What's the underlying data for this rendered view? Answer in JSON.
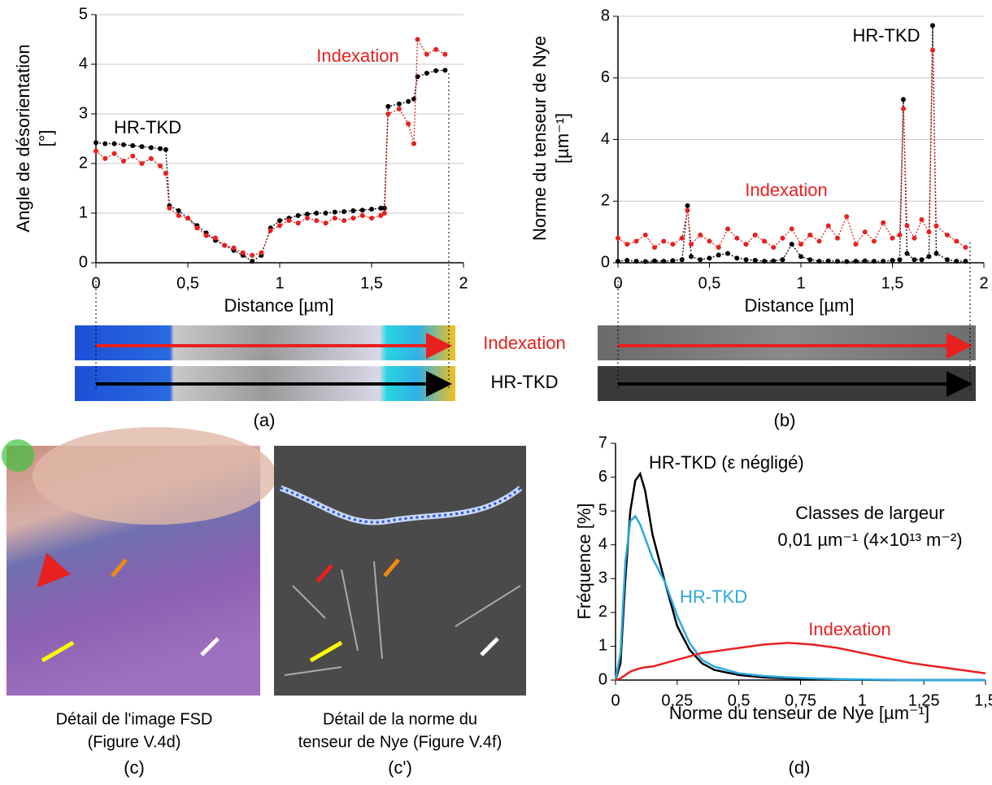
{
  "chart_data": [
    {
      "type": "line",
      "caption": "(a)",
      "ylabel": [
        "Angle de désorientation",
        "[°]"
      ],
      "xlabel": "Distance [µm]",
      "xlim": [
        0,
        2
      ],
      "xticks": [
        0,
        {
          "value": 0.5,
          "label": "0,5"
        },
        1,
        {
          "value": 1.5,
          "label": "1,5"
        },
        2
      ],
      "ylim": [
        0,
        5
      ],
      "yticks": [
        0,
        1,
        2,
        3,
        4,
        5
      ],
      "grid": true,
      "markers": true,
      "x": [
        0,
        0.05,
        0.1,
        0.15,
        0.2,
        0.25,
        0.3,
        0.35,
        0.38,
        0.4,
        0.45,
        0.5,
        0.55,
        0.6,
        0.65,
        0.7,
        0.75,
        0.8,
        0.85,
        0.9,
        0.95,
        1.0,
        1.05,
        1.1,
        1.15,
        1.2,
        1.25,
        1.3,
        1.35,
        1.4,
        1.45,
        1.5,
        1.55,
        1.57,
        1.59,
        1.65,
        1.7,
        1.73,
        1.75,
        1.8,
        1.85,
        1.9
      ],
      "series": [
        {
          "name": "HR-TKD",
          "color": "#000000",
          "values": [
            2.42,
            2.4,
            2.4,
            2.38,
            2.36,
            2.34,
            2.32,
            2.3,
            2.28,
            1.15,
            1.05,
            0.9,
            0.75,
            0.6,
            0.45,
            0.35,
            0.25,
            0.15,
            0.03,
            0.15,
            0.7,
            0.85,
            0.9,
            0.95,
            0.98,
            1.0,
            1.0,
            1.02,
            1.03,
            1.05,
            1.06,
            1.08,
            1.1,
            1.1,
            3.15,
            3.2,
            3.25,
            3.3,
            3.75,
            3.82,
            3.87,
            3.88
          ]
        },
        {
          "name": "Indexation",
          "color": "#e8201f",
          "values": [
            2.25,
            2.1,
            2.2,
            2.05,
            2.15,
            2.0,
            2.1,
            1.95,
            1.8,
            1.1,
            0.95,
            0.9,
            0.7,
            0.55,
            0.5,
            0.35,
            0.3,
            0.2,
            0.15,
            0.2,
            0.65,
            0.75,
            0.85,
            0.8,
            0.9,
            0.85,
            0.8,
            0.9,
            0.85,
            0.9,
            0.95,
            0.9,
            0.95,
            1.0,
            3.0,
            3.1,
            2.8,
            2.4,
            4.5,
            4.2,
            4.3,
            4.2
          ]
        }
      ]
    },
    {
      "type": "line",
      "caption": "(b)",
      "ylabel": [
        "Norme du tenseur de Nye",
        "[µm⁻¹]"
      ],
      "xlabel": "Distance [µm]",
      "xlim": [
        0,
        2
      ],
      "xticks": [
        0,
        {
          "value": 0.5,
          "label": "0,5"
        },
        1,
        {
          "value": 1.5,
          "label": "1,5"
        },
        2
      ],
      "ylim": [
        0,
        8
      ],
      "yticks": [
        0,
        2,
        4,
        6,
        8
      ],
      "grid": true,
      "markers": true,
      "x": [
        0,
        0.05,
        0.1,
        0.15,
        0.2,
        0.25,
        0.3,
        0.35,
        0.38,
        0.4,
        0.45,
        0.5,
        0.55,
        0.6,
        0.65,
        0.7,
        0.75,
        0.8,
        0.85,
        0.9,
        0.95,
        1.0,
        1.05,
        1.1,
        1.15,
        1.2,
        1.25,
        1.3,
        1.35,
        1.4,
        1.45,
        1.5,
        1.54,
        1.56,
        1.58,
        1.62,
        1.66,
        1.7,
        1.72,
        1.74,
        1.8,
        1.85,
        1.9
      ],
      "series": [
        {
          "name": "HR-TKD",
          "color": "#000000",
          "values": [
            0.05,
            0.08,
            0.05,
            0.04,
            0.06,
            0.05,
            0.07,
            0.1,
            1.85,
            0.2,
            0.1,
            0.15,
            0.25,
            0.3,
            0.15,
            0.1,
            0.08,
            0.05,
            0.06,
            0.1,
            0.6,
            0.2,
            0.1,
            0.05,
            0.06,
            0.05,
            0.04,
            0.05,
            0.06,
            0.05,
            0.05,
            0.08,
            0.1,
            5.3,
            0.3,
            0.1,
            0.1,
            0.2,
            7.7,
            0.3,
            0.1,
            0.05,
            0.05
          ]
        },
        {
          "name": "Indexation",
          "color": "#e8201f",
          "values": [
            0.8,
            0.6,
            0.7,
            0.9,
            0.5,
            0.7,
            0.6,
            0.8,
            1.7,
            0.6,
            0.9,
            0.7,
            0.5,
            1.1,
            0.8,
            0.6,
            0.9,
            0.7,
            0.5,
            0.8,
            1.1,
            0.6,
            0.9,
            0.7,
            1.2,
            0.8,
            1.5,
            0.6,
            1.0,
            0.7,
            1.3,
            0.8,
            0.9,
            5.0,
            1.2,
            0.8,
            1.4,
            1.0,
            6.9,
            1.2,
            0.9,
            0.7,
            0.5
          ]
        }
      ]
    },
    {
      "type": "line",
      "caption": "(d)",
      "ylabel": [
        "Fréquence [%]"
      ],
      "xlabel": "Norme du tenseur de Nye [µm⁻¹]",
      "annotations": [
        "Classes de largeur",
        "0,01 µm⁻¹ (4×10¹³ m⁻²)"
      ],
      "xlim": [
        0,
        1.5
      ],
      "xticks": [
        0,
        {
          "value": 0.25,
          "label": "0,25"
        },
        {
          "value": 0.5,
          "label": "0,5"
        },
        {
          "value": 0.75,
          "label": "0,75"
        },
        1,
        {
          "value": 1.25,
          "label": "1,25"
        },
        {
          "value": 1.5,
          "label": "1,5"
        }
      ],
      "ylim": [
        0,
        7
      ],
      "yticks": [
        0,
        1,
        2,
        3,
        4,
        5,
        6,
        7
      ],
      "grid": false,
      "markers": false,
      "x": [
        0,
        0.02,
        0.04,
        0.06,
        0.08,
        0.1,
        0.12,
        0.15,
        0.2,
        0.25,
        0.3,
        0.35,
        0.4,
        0.5,
        0.6,
        0.7,
        0.8,
        0.9,
        1.0,
        1.1,
        1.2,
        1.3,
        1.4,
        1.5
      ],
      "series": [
        {
          "name": "HR-TKD (ε négligé)",
          "color": "#000000",
          "values": [
            0,
            0.5,
            3.0,
            5.0,
            5.9,
            6.1,
            5.6,
            4.3,
            2.9,
            1.6,
            0.9,
            0.5,
            0.3,
            0.15,
            0.08,
            0.05,
            0.03,
            0.02,
            0.01,
            0,
            0,
            0,
            0,
            0
          ]
        },
        {
          "name": "HR-TKD",
          "color": "#29a9e0",
          "values": [
            0,
            0.8,
            3.5,
            4.7,
            4.85,
            4.6,
            4.2,
            3.6,
            2.9,
            1.9,
            1.1,
            0.6,
            0.4,
            0.2,
            0.12,
            0.08,
            0.05,
            0.03,
            0.02,
            0.01,
            0,
            0,
            0,
            0
          ]
        },
        {
          "name": "Indexation",
          "color": "#e8201f",
          "values": [
            0,
            0.05,
            0.15,
            0.25,
            0.3,
            0.35,
            0.38,
            0.4,
            0.5,
            0.6,
            0.7,
            0.8,
            0.85,
            0.95,
            1.05,
            1.1,
            1.05,
            0.95,
            0.8,
            0.65,
            0.5,
            0.4,
            0.3,
            0.2
          ]
        }
      ]
    }
  ],
  "panels": {
    "a": {
      "strip_labels": [
        "Indexation",
        "HR-TKD"
      ]
    },
    "b": {
      "strip_labels": [
        "Indexation",
        "HR-TKD"
      ]
    },
    "c": {
      "caption": [
        "Détail de l'image FSD",
        "(Figure V.4d)"
      ],
      "label": "(c)"
    },
    "c2": {
      "caption": [
        "Détail de la norme du",
        "tenseur de Nye (Figure V.4f)"
      ],
      "label": "(c')"
    }
  }
}
